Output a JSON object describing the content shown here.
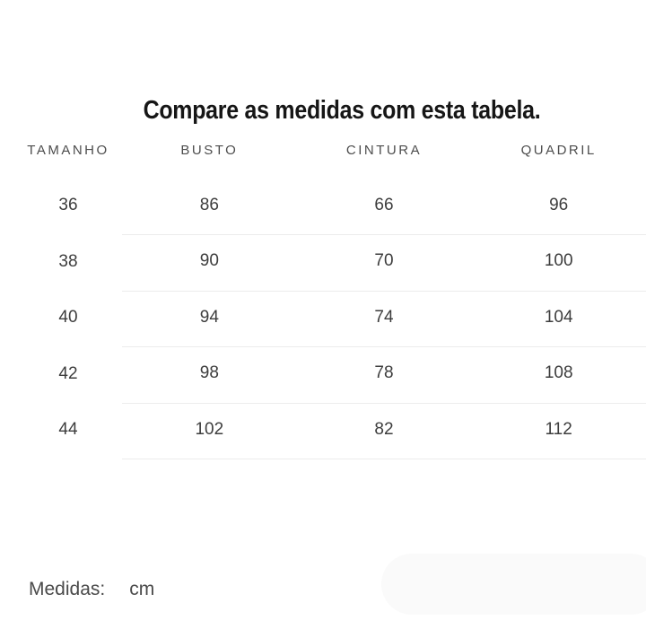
{
  "title": "Compare as medidas com esta tabela.",
  "table": {
    "columns": [
      "TAMANHO",
      "BUSTO",
      "CINTURA",
      "QUADRIL"
    ],
    "rows": [
      [
        "36",
        "86",
        "66",
        "96"
      ],
      [
        "38",
        "90",
        "70",
        "100"
      ],
      [
        "40",
        "94",
        "74",
        "104"
      ],
      [
        "42",
        "98",
        "78",
        "108"
      ],
      [
        "44",
        "102",
        "82",
        "112"
      ]
    ]
  },
  "footer": {
    "label": "Medidas:",
    "unit": "cm"
  },
  "colors": {
    "background": "#ffffff",
    "title": "#161616",
    "header_text": "#4d4d4d",
    "cell_text": "#3d3d3d",
    "divider": "#ececec",
    "footer_text": "#4a4a4a",
    "pill": "#fafafa"
  }
}
